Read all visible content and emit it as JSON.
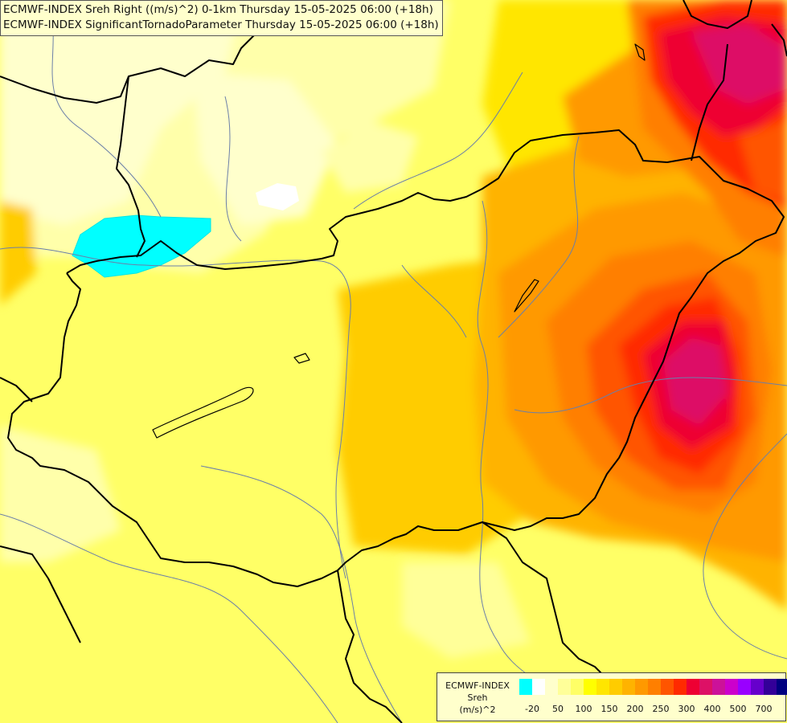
{
  "titles": {
    "line1": "ECMWF-INDEX Sreh Right ((m/s)^2) 0-1km Thursday 15-05-2025 06:00 (+18h)",
    "line2": "ECMWF-INDEX SignificantTornadoParameter Thursday 15-05-2025 06:00 (+18h)"
  },
  "legend": {
    "model": "ECMWF-INDEX",
    "variable": "Sreh",
    "unit": "(m/s)^2",
    "colors": [
      "#00ffff",
      "#ffffff",
      "#ffffcc",
      "#ffff99",
      "#ffff66",
      "#ffff00",
      "#ffe600",
      "#ffcc00",
      "#ffb300",
      "#ff9900",
      "#ff7f00",
      "#ff5500",
      "#ff2a00",
      "#ee0033",
      "#dd1166",
      "#cc1199",
      "#cc00cc",
      "#9900ff",
      "#6600cc",
      "#330099",
      "#000080"
    ],
    "ticks": [
      "-20",
      "50",
      "100",
      "150",
      "200",
      "250",
      "300",
      "400",
      "500",
      "700"
    ]
  }
}
